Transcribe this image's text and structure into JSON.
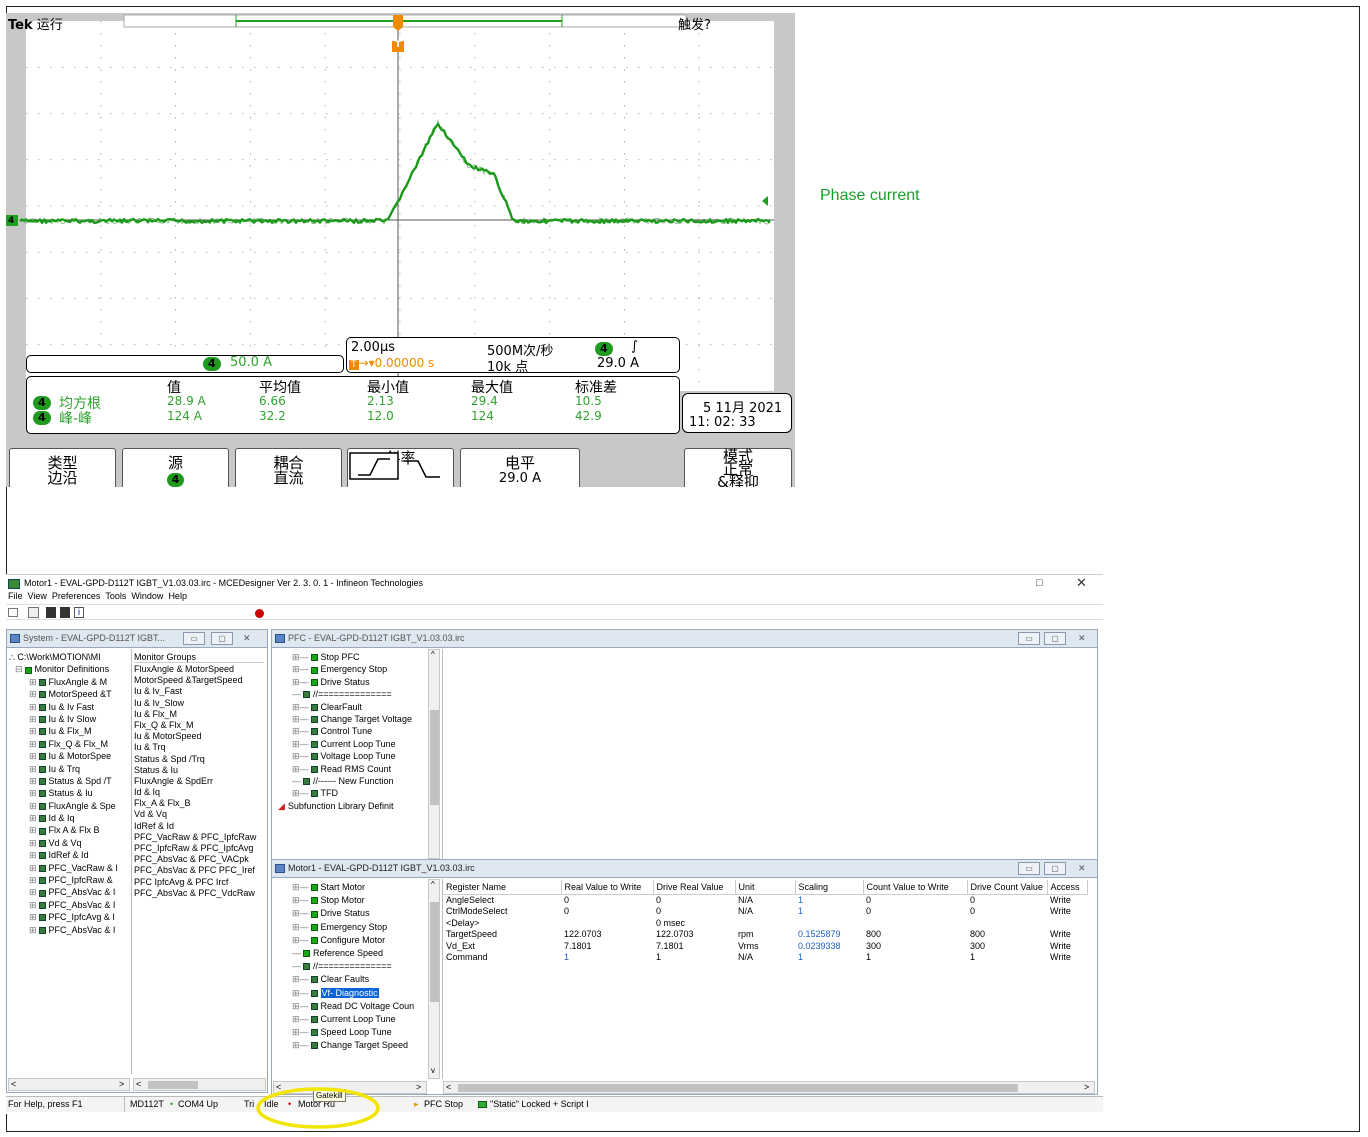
{
  "oscilloscope": {
    "brand": "Tek",
    "run_state": "运行",
    "trigger_status": "触发?",
    "trigger_marker": "T",
    "channel": "4",
    "scale_value": "50.0 A",
    "timebase": "2.00µs",
    "sample_rate": "500M次/秒",
    "trigger_pos": "▾0.00000 s",
    "record_length": "10k 点",
    "trigger_level": "29.0 A",
    "slope_symbol": "∫",
    "measurements": {
      "headers": [
        "值",
        "平均值",
        "最小值",
        "最大值",
        "标准差"
      ],
      "rows": [
        {
          "label": "均方根",
          "values": [
            "28.9 A",
            "6.66",
            "2.13",
            "29.4",
            "10.5"
          ]
        },
        {
          "label": "峰-峰",
          "values": [
            "124 A",
            "32.2",
            "12.0",
            "124",
            "42.9"
          ]
        }
      ]
    },
    "date": "5 11月  2021",
    "time": "11: 02: 33",
    "softkeys": {
      "type_title": "类型",
      "type_value": "边沿",
      "source_title": "源",
      "coupling_title": "耦合",
      "coupling_value": "直流",
      "slope_title": "斜率",
      "level_title": "电平",
      "level_value": "29.0 A",
      "mode_title": "模式",
      "mode_line1": "正常",
      "mode_line2": "&释抑"
    },
    "colors": {
      "trace": "#1ea01e",
      "screen": "#ffffff",
      "bezel": "#c8c8c8"
    }
  },
  "annotation": {
    "phase_current_label": "Phase current",
    "color": "#1aa02a"
  },
  "mce": {
    "title": "Motor1 - EVAL-GPD-D112T IGBT_V1.03.03.irc - MCEDesigner Ver 2. 3. 0. 1  - Infineon Technologies",
    "menu": [
      "File",
      "View",
      "Preferences",
      "Tools",
      "Window",
      "Help"
    ],
    "system_window": {
      "title": "System - EVAL-GPD-D112T IGBT...",
      "tree": [
        "C:\\Work\\MOTION\\MI",
        "Monitor Definitions",
        "FluxAngle & M",
        "MotorSpeed &T",
        "Iu & Iv Fast",
        "Iu & Iv Slow",
        "Iu & Flx_M",
        "Flx_Q & Flx_M",
        "Iu & MotorSpee",
        "Iu & Trq",
        "Status & Spd /T",
        "Status & Iu",
        "FluxAngle & Spe",
        "Id & Iq",
        "Flx A & Flx B",
        "Vd & Vq",
        "IdRef & Id",
        "PFC_VacRaw & I",
        "PFC_IpfcRaw &",
        "PFC_AbsVac & I",
        "PFC_AbsVac & I",
        "PFC_IpfcAvg & I",
        "PFC_AbsVac & I"
      ],
      "groups_header": "Monitor Groups",
      "groups": [
        "FluxAngle & MotorSpeed",
        "MotorSpeed &TargetSpeed",
        "Iu & Iv_Fast",
        "Iu & Iv_Slow",
        "Iu & Flx_M",
        "Flx_Q & Flx_M",
        "Iu & MotorSpeed",
        "Iu & Trq",
        "Status & Spd /Trq",
        "Status & Iu",
        "FluxAngle & SpdErr",
        "Id & Iq",
        "Flx_A & Flx_B",
        "Vd & Vq",
        "IdRef & Id",
        "PFC_VacRaw & PFC_IpfcRaw",
        "PFC_IpfcRaw & PFC_IpfcAvg",
        "PFC_AbsVac & PFC_VACpk",
        "PFC_AbsVac & PFC PFC_Iref",
        "PFC IpfcAvg & PFC Ircf",
        "PFC_AbsVac & PFC_VdcRaw"
      ]
    },
    "pfc_window": {
      "title": "PFC - EVAL-GPD-D112T IGBT_V1.03.03.irc",
      "tree": [
        "Stop PFC",
        "Emergency Stop",
        "Drive Status",
        "//==============",
        "ClearFault",
        "Change Target Voltage",
        "Control Tune",
        "Current Loop Tune",
        "Voltage Loop Tune",
        "Read RMS Count",
        "//------ New Function",
        "TFD",
        "Subfunction Library Definit"
      ]
    },
    "motor_window": {
      "title": "Motor1 - EVAL-GPD-D112T IGBT_V1.03.03.irc",
      "tree": [
        "Start Motor",
        "Stop Motor",
        "Drive Status",
        "Emergency Stop",
        "Configure Motor",
        "Reference Speed",
        "//==============",
        "Clear Faults",
        "Vf- Diagnostic",
        "Read DC Voltage Coun",
        "Current Loop Tune",
        "Speed Loop Tune",
        "Change Target Speed"
      ],
      "selected": "Vf- Diagnostic",
      "headers": [
        "Register Name",
        "Real Value to Write",
        "Drive Real Value",
        "Unit",
        "Scaling",
        "Count Value to Write",
        "Drive Count Value",
        "Access"
      ],
      "rows": [
        [
          "AngleSelect",
          "0",
          "0",
          "N/A",
          "1",
          "0",
          "0",
          "Write"
        ],
        [
          "CtrlModeSelect",
          "0",
          "0",
          "N/A",
          "1",
          "0",
          "0",
          "Write"
        ],
        [
          "<Delay>",
          "",
          "0 msec",
          "",
          "",
          "",
          "",
          ""
        ],
        [
          "TargetSpeed",
          "122.0703",
          "122.0703",
          "rpm",
          "0.1525879",
          "800",
          "800",
          "Write"
        ],
        [
          "Vd_Ext",
          "7.1801",
          "7.1801",
          "Vrms",
          "0.0239338",
          "300",
          "300",
          "Write"
        ],
        [
          "Command",
          "1",
          "1",
          "N/A",
          "1",
          "1",
          "1",
          "Write"
        ]
      ]
    },
    "status_bar": {
      "help": "For Help, press F1",
      "drive": "MD112T",
      "com": "COM4 Up",
      "trip": "Tri",
      "idle": "Idle",
      "motor": "Motor Ru",
      "tooltip": "Gatekill",
      "pfc": "PFC Stop",
      "lock": "\"Static\" Locked + Script I"
    }
  }
}
